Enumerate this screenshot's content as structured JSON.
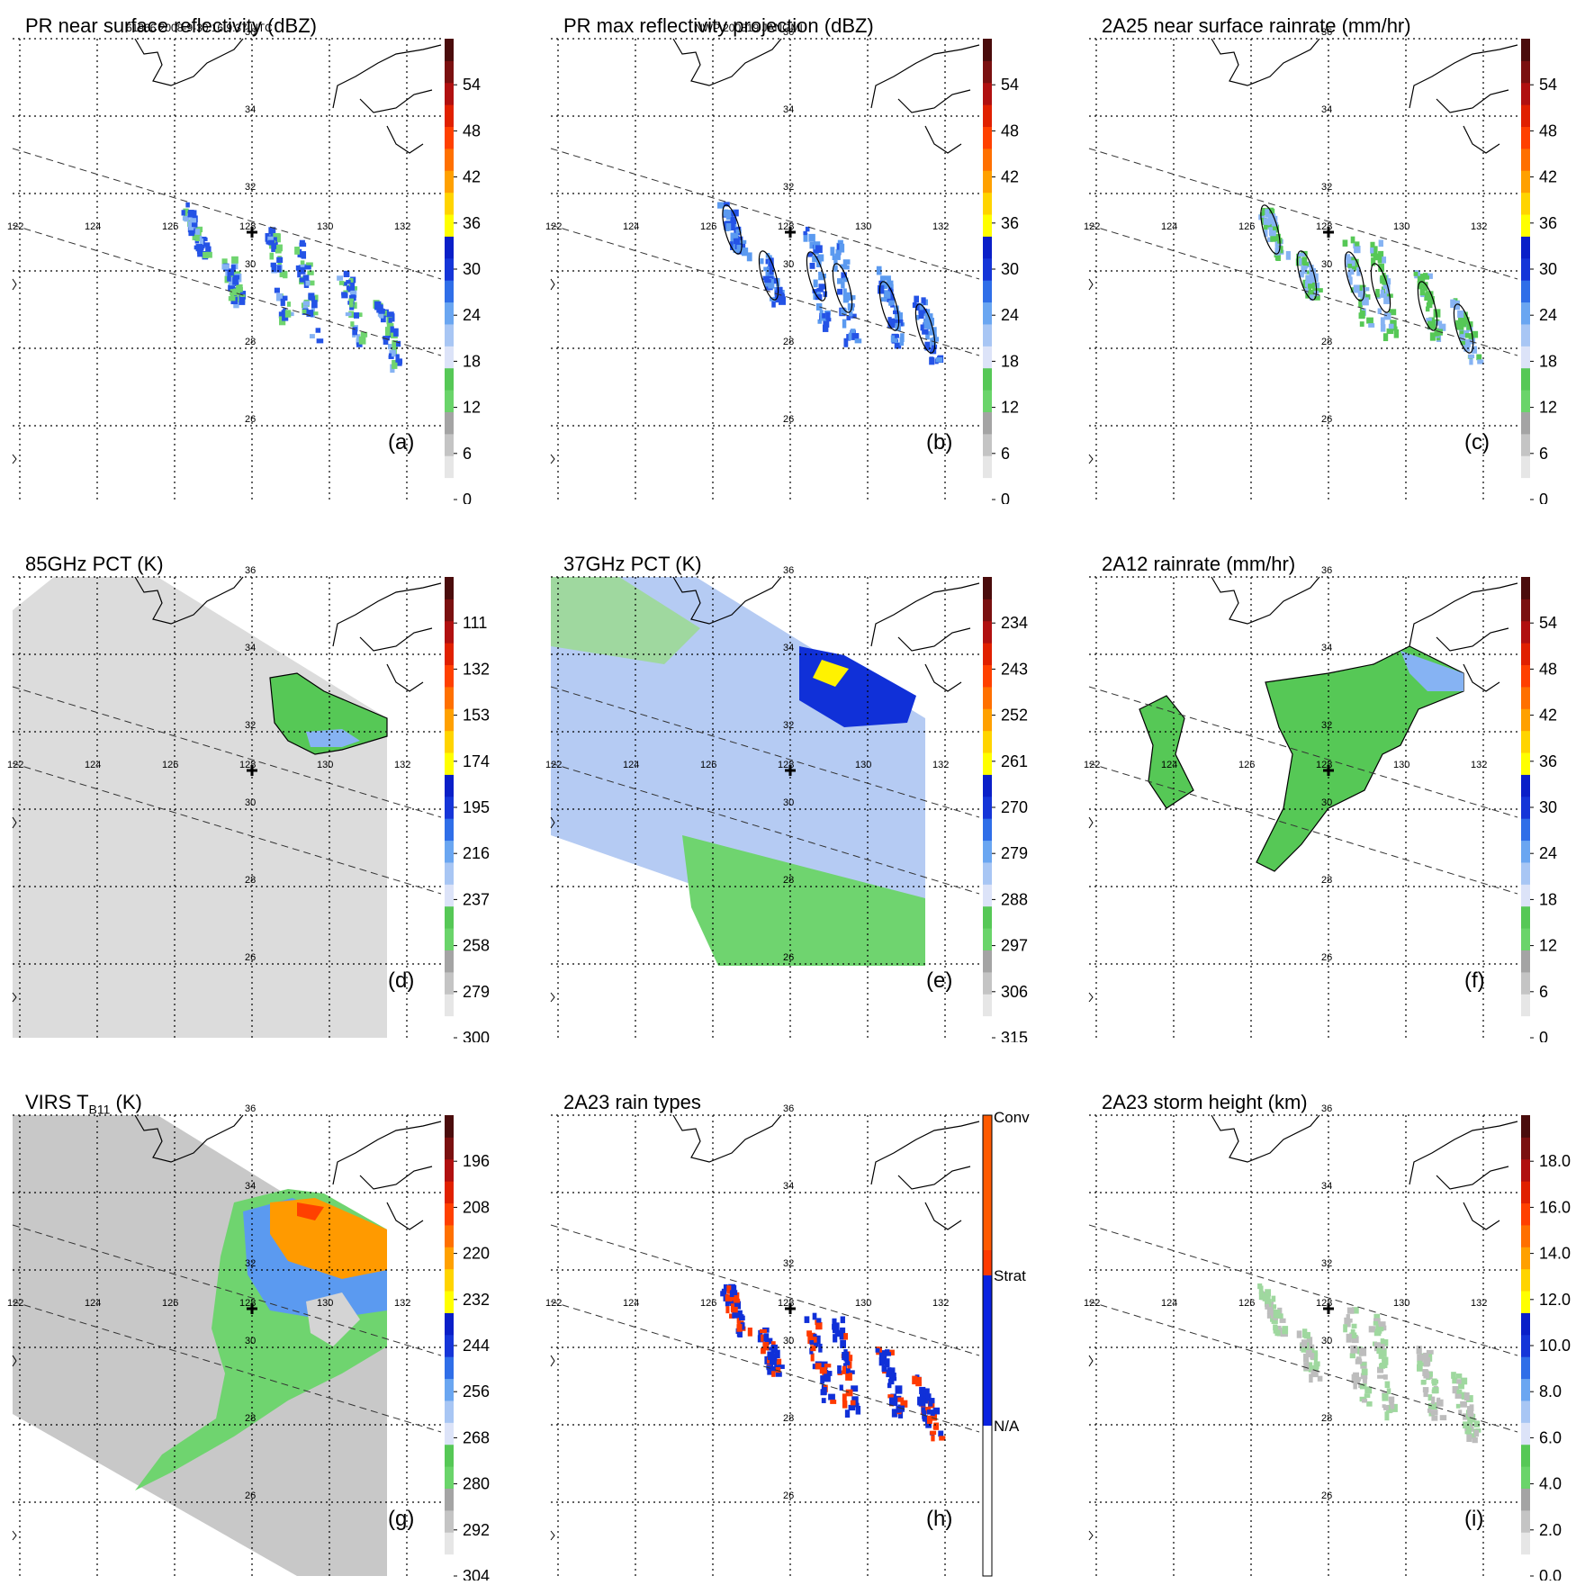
{
  "header": {
    "orbit_info": "61966 2008-9-30 16:9:37 UTC",
    "storm_info": "NWP 200819 JANGMI"
  },
  "map": {
    "lon_labels": [
      "122",
      "124",
      "126",
      "128",
      "130",
      "132"
    ],
    "lat_labels": [
      "36",
      "34",
      "32",
      "30",
      "28",
      "26"
    ]
  },
  "chart_data": [
    {
      "id": "a",
      "type": "heatmap",
      "title": "PR near surface reflectivity (dBZ)",
      "label": "(a)",
      "field": "swath_pr",
      "colorbar": {
        "ticks": [
          "54",
          "48",
          "42",
          "36",
          "30",
          "24",
          "18",
          "12",
          "6",
          "0"
        ],
        "range": [
          0,
          60
        ],
        "unit": "dBZ"
      }
    },
    {
      "id": "b",
      "type": "heatmap",
      "title": "PR max reflectivity projection (dBZ)",
      "label": "(b)",
      "field": "swath_pr_max",
      "colorbar": {
        "ticks": [
          "54",
          "48",
          "42",
          "36",
          "30",
          "24",
          "18",
          "12",
          "6",
          "0"
        ],
        "range": [
          0,
          60
        ],
        "unit": "dBZ"
      }
    },
    {
      "id": "c",
      "type": "heatmap",
      "title": "2A25 near surface rainrate (mm/hr)",
      "label": "(c)",
      "field": "swath_rain",
      "colorbar": {
        "ticks": [
          "54",
          "48",
          "42",
          "36",
          "30",
          "24",
          "18",
          "12",
          "6",
          "0"
        ],
        "range": [
          0,
          60
        ],
        "unit": "mm/hr"
      }
    },
    {
      "id": "d",
      "type": "heatmap",
      "title": "85GHz PCT (K)",
      "label": "(d)",
      "field": "pct85",
      "colorbar": {
        "ticks": [
          "111",
          "132",
          "153",
          "174",
          "195",
          "216",
          "237",
          "258",
          "279",
          "300"
        ],
        "range": [
          90,
          300
        ],
        "unit": "K"
      }
    },
    {
      "id": "e",
      "type": "heatmap",
      "title": "37GHz PCT (K)",
      "label": "(e)",
      "field": "pct37",
      "colorbar": {
        "ticks": [
          "234",
          "243",
          "252",
          "261",
          "270",
          "279",
          "288",
          "297",
          "306",
          "315"
        ],
        "range": [
          225,
          315
        ],
        "unit": "K"
      }
    },
    {
      "id": "f",
      "type": "heatmap",
      "title": "2A12 rainrate (mm/hr)",
      "label": "(f)",
      "field": "rain2a12",
      "colorbar": {
        "ticks": [
          "54",
          "48",
          "42",
          "36",
          "30",
          "24",
          "18",
          "12",
          "6",
          "0"
        ],
        "range": [
          0,
          60
        ],
        "unit": "mm/hr"
      }
    },
    {
      "id": "g",
      "type": "heatmap",
      "title_main": "VIRS T",
      "title_sub": "B11",
      "title_unit": " (K)",
      "label": "(g)",
      "field": "virs",
      "colorbar": {
        "ticks": [
          "196",
          "208",
          "220",
          "232",
          "244",
          "256",
          "268",
          "280",
          "292",
          "304"
        ],
        "range": [
          184,
          304
        ],
        "unit": "K"
      }
    },
    {
      "id": "h",
      "type": "heatmap",
      "title": "2A23 rain types",
      "label": "(h)",
      "field": "raintype",
      "colorbar": {
        "categorical": true,
        "ticks": [
          "Conv",
          "Strat",
          "N/A"
        ]
      }
    },
    {
      "id": "i",
      "type": "heatmap",
      "title": "2A23 storm height (km)",
      "label": "(i)",
      "field": "height",
      "colorbar": {
        "ticks": [
          "18.0",
          "16.0",
          "14.0",
          "12.0",
          "10.0",
          "8.0",
          "6.0",
          "4.0",
          "2.0",
          "0.0"
        ],
        "range": [
          0,
          20
        ],
        "unit": "km"
      }
    }
  ]
}
